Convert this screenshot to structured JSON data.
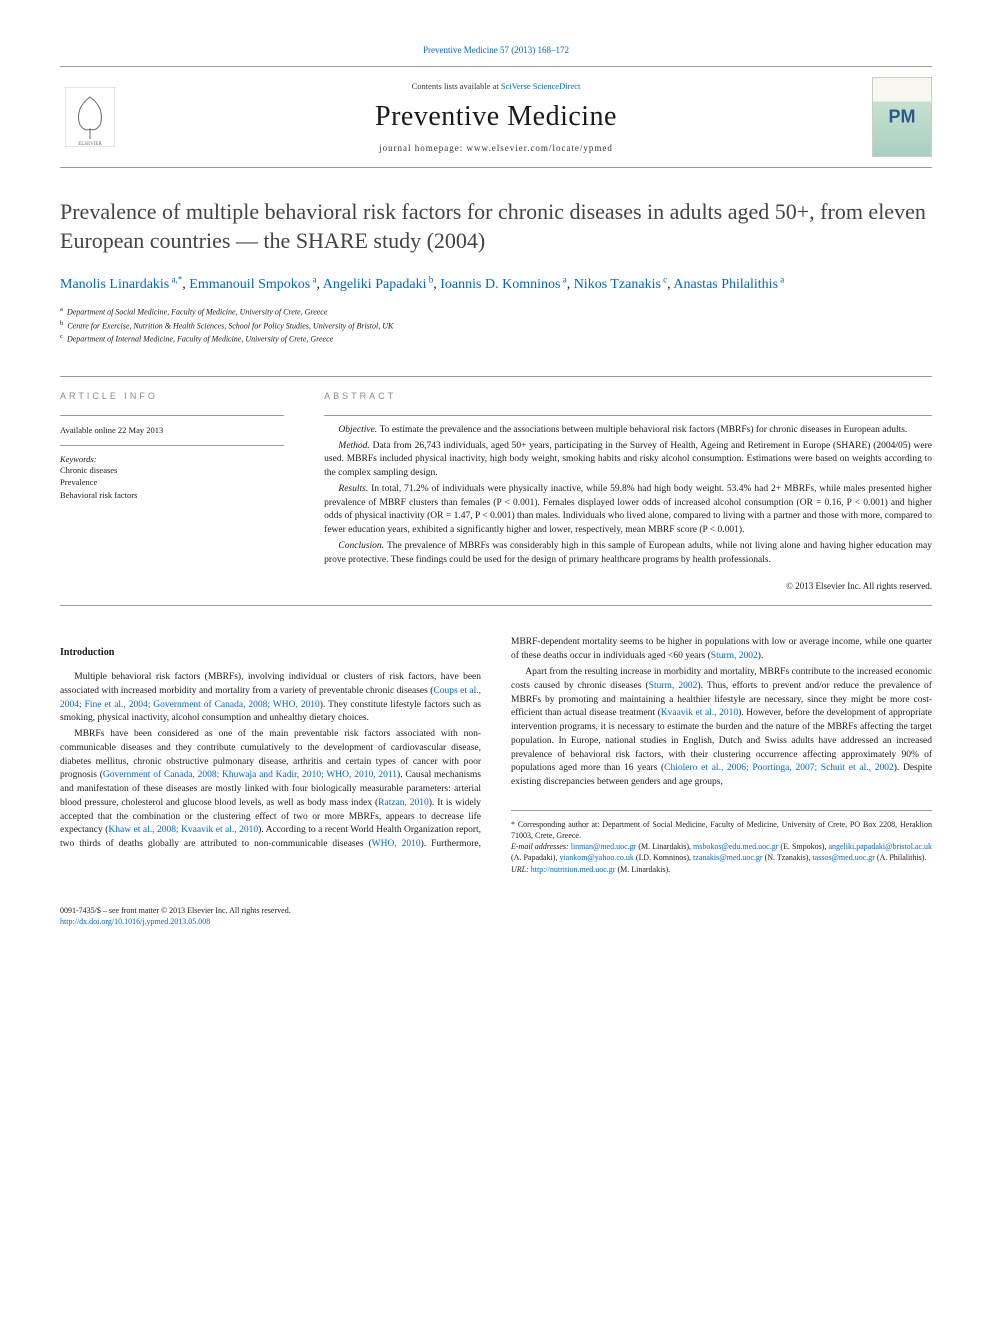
{
  "top_link": {
    "journal": "Preventive Medicine",
    "volume": "57 (2013) 168–172"
  },
  "header": {
    "contents_prefix": "Contents lists available at",
    "scidirect": "SciVerse ScienceDirect",
    "journal_name": "Preventive Medicine",
    "homepage": "journal homepage: www.elsevier.com/locate/ypmed",
    "elsevier_color": "#ff6600",
    "cover_gradient_top": "#f8f8f0",
    "cover_gradient_bottom": "#a8d0c0"
  },
  "title": "Prevalence of multiple behavioral risk factors for chronic diseases in adults aged 50+, from eleven European countries — the SHARE study (2004)",
  "authors": [
    {
      "name": "Manolis Linardakis",
      "marks": "a,*"
    },
    {
      "name": "Emmanouil Smpokos",
      "marks": "a"
    },
    {
      "name": "Angeliki Papadaki",
      "marks": "b"
    },
    {
      "name": "Ioannis D. Komninos",
      "marks": "a"
    },
    {
      "name": "Nikos Tzanakis",
      "marks": "c"
    },
    {
      "name": "Anastas Philalithis",
      "marks": "a"
    }
  ],
  "affiliations": [
    {
      "mark": "a",
      "text": "Department of Social Medicine, Faculty of Medicine, University of Crete, Greece"
    },
    {
      "mark": "b",
      "text": "Centre for Exercise, Nutrition & Health Sciences, School for Policy Studies, University of Bristol, UK"
    },
    {
      "mark": "c",
      "text": "Department of Internal Medicine, Faculty of Medicine, University of Crete, Greece"
    }
  ],
  "article_info": {
    "label": "article info",
    "available": "Available online 22 May 2013",
    "keywords_label": "Keywords:",
    "keywords": [
      "Chronic diseases",
      "Prevalence",
      "Behavioral risk factors"
    ]
  },
  "abstract": {
    "label": "abstract",
    "paragraphs": [
      {
        "tag": "Objective.",
        "text": "To estimate the prevalence and the associations between multiple behavioral risk factors (MBRFs) for chronic diseases in European adults."
      },
      {
        "tag": "Method.",
        "text": "Data from 26,743 individuals, aged 50+ years, participating in the Survey of Health, Ageing and Retirement in Europe (SHARE) (2004/05) were used. MBRFs included physical inactivity, high body weight, smoking habits and risky alcohol consumption. Estimations were based on weights according to the complex sampling design."
      },
      {
        "tag": "Results.",
        "text": "In total, 71.2% of individuals were physically inactive, while 59.8% had high body weight. 53.4% had 2+ MBRFs, while males presented higher prevalence of MBRF clusters than females (P < 0.001). Females displayed lower odds of increased alcohol consumption (OR = 0.16, P < 0.001) and higher odds of physical inactivity (OR = 1.47, P < 0.001) than males. Individuals who lived alone, compared to living with a partner and those with more, compared to fewer education years, exhibited a significantly higher and lower, respectively, mean MBRF score (P < 0.001)."
      },
      {
        "tag": "Conclusion.",
        "text": "The prevalence of MBRFs was considerably high in this sample of European adults, while not living alone and having higher education may prove protective. These findings could be used for the design of primary healthcare programs by health professionals."
      }
    ],
    "copyright": "© 2013 Elsevier Inc. All rights reserved."
  },
  "body": {
    "heading": "Introduction",
    "paragraphs": [
      "Multiple behavioral risk factors (MBRFs), involving individual or clusters of risk factors, have been associated with increased morbidity and mortality from a variety of preventable chronic diseases (|Coups et al., 2004; Fine et al., 2004; Government of Canada, 2008; WHO, 2010|). They constitute lifestyle factors such as smoking, physical inactivity, alcohol consumption and unhealthy dietary choices.",
      "MBRFs have been considered as one of the main preventable risk factors associated with non-communicable diseases and they contribute cumulatively to the development of cardiovascular disease, diabetes mellitus, chronic obstructive pulmonary disease, arthritis and certain types of cancer with poor prognosis (|Government of Canada, 2008; Khuwaja and Kadir, 2010; WHO, 2010, 2011|). Causal mechanisms and manifestation of these diseases are mostly linked with four biologically measurable parameters: arterial blood pressure, cholesterol and glucose blood levels, as well as body mass index (|Ratzan, 2010|). It is widely accepted that the combination or the clustering effect of two or more MBRFs, appears to decrease life expectancy (|Khaw et al., 2008; Kvaavik et al., 2010|). According to a recent World Health Organization report, two thirds of deaths globally are attributed to non-communicable diseases (|WHO, 2010|). Furthermore, MBRF-dependent mortality seems to be higher in populations with low or average income, while one quarter of these deaths occur in individuals aged <60 years (|Sturm, 2002|).",
      "Apart from the resulting increase in morbidity and mortality, MBRFs contribute to the increased economic costs caused by chronic diseases (|Sturm, 2002|). Thus, efforts to prevent and/or reduce the prevalence of MBRFs by promoting and maintaining a healthier lifestyle are necessary, since they might be more cost-efficient than actual disease treatment (|Kvaavik et al., 2010|). However, before the development of appropriate intervention programs, it is necessary to estimate the burden and the nature of the MBRFs affecting the target population. In Europe, national studies in English, Dutch and Swiss adults have addressed an increased prevalence of behavioral risk factors, with their clustering occurrence affecting approximately 90% of populations aged more than 16 years (|Chiolero et al., 2006; Poortinga, 2007; Schuit et al., 2002|). Despite existing discrepancies between genders and age groups,"
    ]
  },
  "footnotes": {
    "corresponding": "* Corresponding author at: Department of Social Medicine, Faculty of Medicine, University of Crete, PO Box 2208, Heraklion 71003, Crete, Greece.",
    "emails_label": "E-mail addresses:",
    "emails": [
      {
        "addr": "linman@med.uoc.gr",
        "who": "M. Linardakis"
      },
      {
        "addr": "msbokos@edu.med.uoc.gr",
        "who": "E. Smpokos"
      },
      {
        "addr": "angeliki.papadaki@bristol.ac.uk",
        "who": "A. Papadaki"
      },
      {
        "addr": "yiankom@yahoo.co.uk",
        "who": "I.D. Komninos"
      },
      {
        "addr": "tzanakis@med.uoc.gr",
        "who": "N. Tzanakis"
      },
      {
        "addr": "tassos@med.uoc.gr",
        "who": "A. Philalithis"
      }
    ],
    "url_label": "URL:",
    "url": "http://nutrition.med.uoc.gr",
    "url_who": "M. Linardakis"
  },
  "footer": {
    "issn": "0091-7435/$ – see front matter © 2013 Elsevier Inc. All rights reserved.",
    "doi": "http://dx.doi.org/10.1016/j.ypmed.2013.05.008"
  },
  "colors": {
    "link": "#0066cc",
    "text": "#1a1a1a",
    "muted": "#888888",
    "orange": "#ff6600"
  },
  "typography": {
    "title_fontsize": 22,
    "body_fontsize": 9.5,
    "abstract_fontsize": 9.5,
    "authors_fontsize": 14,
    "journal_name_fontsize": 28
  }
}
